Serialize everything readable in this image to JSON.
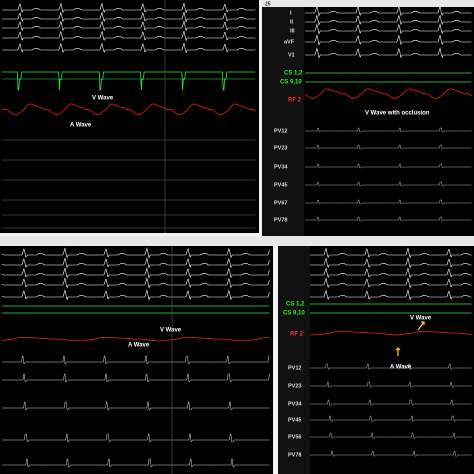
{
  "top_left": {
    "annotations": [
      "V Wave",
      "A Wave"
    ]
  },
  "top_right": {
    "header": "25",
    "leads": [
      "I",
      "II",
      "III",
      "aVF",
      "V1"
    ],
    "cs_labels": [
      "CS 1,2",
      "CS 9,10"
    ],
    "rf_label": "RF 2",
    "annotation": "V Wave with occlusion",
    "pv_labels": [
      "PV12",
      "PV23",
      "PV34",
      "PV45",
      "PV67",
      "PV78"
    ]
  },
  "bottom_left": {
    "annotations": [
      "V Wave",
      "A Wave"
    ]
  },
  "bottom_right": {
    "cs_labels": [
      "CS 1,2",
      "CS 9,10"
    ],
    "rf_label": "RF 2",
    "annotations": [
      "V Wave",
      "A Wave"
    ],
    "pv_labels": [
      "PV12",
      "PV23",
      "PV34",
      "PV45",
      "PV56",
      "PV78"
    ]
  }
}
